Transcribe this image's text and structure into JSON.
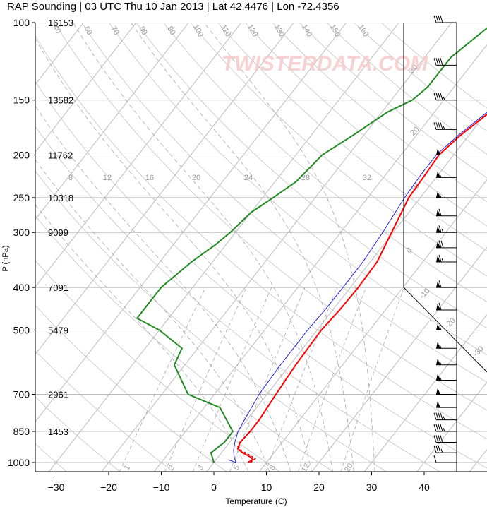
{
  "title": "RAP Sounding | 03 UTC Thu 10 Jan 2013 | Lat 42.4476 | Lon -72.4356",
  "watermark": "TWISTERDATA.COM",
  "chart_data": {
    "type": "line",
    "xlabel": "Temperature (C)",
    "ylabel": "P (hPa)",
    "xlim": [
      -34,
      48
    ],
    "ylim": [
      1050,
      100
    ],
    "y_scale": "log",
    "x_ticks": [
      -30,
      -20,
      -10,
      0,
      10,
      20,
      30,
      40
    ],
    "x_tick_labels": [
      "−30",
      "−20",
      "−10",
      "0",
      "10",
      "20",
      "30",
      "40"
    ],
    "p_ticks": [
      100,
      150,
      200,
      250,
      300,
      400,
      500,
      700,
      850,
      1000
    ],
    "heights": [
      {
        "p": 100,
        "label": "16153"
      },
      {
        "p": 150,
        "label": "13582"
      },
      {
        "p": 200,
        "label": "11762"
      },
      {
        "p": 250,
        "label": "10318"
      },
      {
        "p": 300,
        "label": "9099"
      },
      {
        "p": 400,
        "label": "7091"
      },
      {
        "p": 500,
        "label": "5479"
      },
      {
        "p": 700,
        "label": "2961"
      },
      {
        "p": 850,
        "label": "1453"
      }
    ],
    "dry_adiabat_labels": [
      "30",
      "20",
      "10",
      "0",
      "-10",
      "-20",
      "-30"
    ],
    "mixing_ratio_labels": [
      "8",
      "12",
      "16",
      "20",
      "24",
      "28",
      "32"
    ],
    "mixing_ratio_bottom_labels": [
      "1",
      "2",
      "3",
      "5",
      "8",
      "12",
      "20"
    ],
    "isotherm_labels": [
      "40",
      "60",
      "70",
      "80",
      "90",
      "100",
      "110",
      "120",
      "130",
      "140",
      "150",
      "160"
    ],
    "series": [
      {
        "color": "#ff0000",
        "style": "solid",
        "points": [
          [
            6.5,
            1000
          ],
          [
            7,
            985
          ],
          [
            6,
            970
          ],
          [
            4,
            950
          ],
          [
            2.5,
            930
          ],
          [
            2,
            900
          ],
          [
            2.3,
            850
          ],
          [
            2.3,
            800
          ],
          [
            1.7,
            700
          ],
          [
            1.1,
            600
          ],
          [
            0.8,
            500
          ],
          [
            1.3,
            450
          ],
          [
            1.5,
            400
          ],
          [
            1.3,
            350
          ],
          [
            -0.3,
            300
          ],
          [
            -2.2,
            250
          ],
          [
            -2.5,
            220
          ],
          [
            -2.8,
            200
          ],
          [
            -1.6,
            180
          ],
          [
            0.5,
            160
          ],
          [
            2,
            150
          ],
          [
            2.4,
            140
          ],
          [
            4,
            120
          ],
          [
            6,
            100
          ]
        ]
      },
      {
        "color": "#cc0000",
        "style": "dashed",
        "points": [
          [
            7,
            1000
          ],
          [
            7.3,
            980
          ],
          [
            5.5,
            960
          ],
          [
            3.5,
            940
          ],
          [
            2.2,
            920
          ],
          [
            2,
            900
          ],
          [
            2.3,
            850
          ]
        ]
      },
      {
        "color": "#2222dd",
        "style": "solid",
        "points": [
          [
            2.2,
            985
          ],
          [
            4.2,
            1000
          ],
          [
            3,
            970
          ],
          [
            2,
            940
          ],
          [
            1,
            900
          ],
          [
            0,
            850
          ],
          [
            -0.5,
            800
          ],
          [
            -1.5,
            700
          ],
          [
            -1.8,
            600
          ],
          [
            -1.8,
            500
          ],
          [
            -1.5,
            450
          ],
          [
            -1.4,
            400
          ],
          [
            -1.4,
            350
          ],
          [
            -2,
            300
          ],
          [
            -3,
            250
          ],
          [
            -3.3,
            220
          ],
          [
            -3.3,
            200
          ],
          [
            -2,
            180
          ],
          [
            0,
            160
          ],
          [
            1.2,
            150
          ],
          [
            1.6,
            140
          ],
          [
            3,
            120
          ],
          [
            5,
            100
          ]
        ]
      },
      {
        "color": "#228b22",
        "style": "solid",
        "points": [
          [
            0,
            1000
          ],
          [
            -2,
            950
          ],
          [
            -1,
            900
          ],
          [
            -1,
            850
          ],
          [
            -7,
            750
          ],
          [
            -15,
            700
          ],
          [
            -22,
            600
          ],
          [
            -23,
            550
          ],
          [
            -30,
            500
          ],
          [
            -36,
            470
          ],
          [
            -36,
            400
          ],
          [
            -34,
            350
          ],
          [
            -32,
            320
          ],
          [
            -31,
            300
          ],
          [
            -30,
            270
          ],
          [
            -28,
            250
          ],
          [
            -26,
            230
          ],
          [
            -25,
            200
          ],
          [
            -22,
            180
          ],
          [
            -19,
            160
          ],
          [
            -16,
            150
          ],
          [
            -15,
            140
          ],
          [
            -15,
            120
          ],
          [
            -12,
            100
          ]
        ]
      }
    ],
    "wind_pressures": [
      1000,
      950,
      900,
      850,
      800,
      750,
      700,
      650,
      600,
      550,
      500,
      450,
      400,
      350,
      325,
      300,
      275,
      250,
      225,
      200,
      175,
      150,
      125,
      100
    ],
    "wind_barbs": [
      {
        "p": 1000,
        "speed": 10
      },
      {
        "p": 950,
        "speed": 35
      },
      {
        "p": 900,
        "speed": 40
      },
      {
        "p": 850,
        "speed": 45
      },
      {
        "p": 800,
        "speed": 45
      },
      {
        "p": 750,
        "speed": 50
      },
      {
        "p": 700,
        "speed": 50
      },
      {
        "p": 650,
        "speed": 55
      },
      {
        "p": 600,
        "speed": 55
      },
      {
        "p": 550,
        "speed": 55
      },
      {
        "p": 500,
        "speed": 55
      },
      {
        "p": 450,
        "speed": 60
      },
      {
        "p": 400,
        "speed": 60
      },
      {
        "p": 350,
        "speed": 65
      },
      {
        "p": 325,
        "speed": 70
      },
      {
        "p": 300,
        "speed": 65
      },
      {
        "p": 275,
        "speed": 60
      },
      {
        "p": 250,
        "speed": 55
      },
      {
        "p": 225,
        "speed": 55
      },
      {
        "p": 200,
        "speed": 50
      },
      {
        "p": 175,
        "speed": 45
      },
      {
        "p": 150,
        "speed": 45
      },
      {
        "p": 125,
        "speed": 40
      },
      {
        "p": 100,
        "speed": 40
      }
    ]
  }
}
